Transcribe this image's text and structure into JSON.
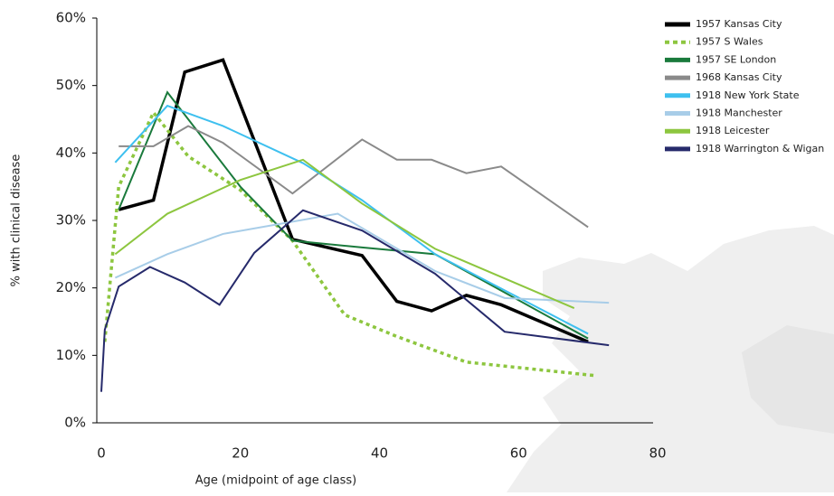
{
  "chart_data": {
    "type": "line",
    "x_label": "Age (midpoint of age class)",
    "y_label": "% with clinical disease",
    "xlim": [
      0,
      80
    ],
    "xticks": [
      0,
      20,
      40,
      60,
      80
    ],
    "ylim": [
      0,
      60
    ],
    "yticks": [
      {
        "value": 0,
        "label": "0%"
      },
      {
        "value": 10,
        "label": "10%"
      },
      {
        "value": 20,
        "label": "20%"
      },
      {
        "value": 30,
        "label": "30%"
      },
      {
        "value": 40,
        "label": "40%"
      },
      {
        "value": 50,
        "label": "50%"
      },
      {
        "value": 60,
        "label": "60%"
      }
    ],
    "grid": false,
    "legend": "top-right",
    "series": [
      {
        "name": "1957 Kansas City",
        "color": "#000000",
        "width": 3.5,
        "dashed": false,
        "x": [
          2.5,
          7.5,
          12,
          17.5,
          27.5,
          37.5,
          42.5,
          47.5,
          52.5,
          57.5,
          70
        ],
        "values": [
          31.6,
          33,
          52,
          53.8,
          27.2,
          24.8,
          18,
          16.6,
          18.9,
          17.5,
          12
        ]
      },
      {
        "name": "1957 S Wales",
        "color": "#8dc63f",
        "width": 3.5,
        "dashed": true,
        "x": [
          0.5,
          2.5,
          7.5,
          12.5,
          20,
          27.5,
          35,
          42.5,
          52.5,
          71
        ],
        "values": [
          12,
          35,
          46,
          39.5,
          34.5,
          27,
          16,
          12.8,
          9,
          7
        ]
      },
      {
        "name": "1957 SE London",
        "color": "#1a7a3c",
        "width": 2,
        "dashed": false,
        "x": [
          2.5,
          9.5,
          20,
          27.5,
          37.5,
          48,
          70
        ],
        "values": [
          31.6,
          49,
          35,
          27,
          26,
          25,
          12.5
        ]
      },
      {
        "name": "1968 Kansas City",
        "color": "#8a8a8a",
        "width": 2,
        "dashed": false,
        "x": [
          2.5,
          7.5,
          12.5,
          17.5,
          27.5,
          37.5,
          42.5,
          47.5,
          52.5,
          57.5,
          70
        ],
        "values": [
          41,
          41,
          44,
          41.5,
          34,
          42,
          39,
          39,
          37,
          38,
          29
        ]
      },
      {
        "name": "1918 New York State",
        "color": "#3ec0ef",
        "width": 2,
        "dashed": false,
        "x": [
          2,
          9.5,
          17.5,
          29,
          37.5,
          48,
          70
        ],
        "values": [
          38.6,
          47,
          44,
          38.5,
          33,
          25,
          13.2
        ]
      },
      {
        "name": "1918 Manchester",
        "color": "#a8cde8",
        "width": 2,
        "dashed": false,
        "x": [
          2,
          9.5,
          17.5,
          34,
          48,
          58,
          73
        ],
        "values": [
          21.5,
          25,
          28,
          31,
          22.5,
          18.5,
          17.8
        ]
      },
      {
        "name": "1918 Leicester",
        "color": "#8dc63f",
        "width": 2,
        "dashed": false,
        "x": [
          2,
          9.5,
          20,
          29,
          37.5,
          48,
          68
        ],
        "values": [
          25,
          31,
          36,
          39,
          32.5,
          25.8,
          17
        ]
      },
      {
        "name": "1918 Warrington & Wigan",
        "color": "#262a6b",
        "width": 2,
        "dashed": false,
        "x": [
          0,
          0.5,
          2.5,
          7,
          12,
          17,
          22,
          29,
          37.5,
          48,
          58,
          73
        ],
        "values": [
          4.6,
          13.8,
          20.2,
          23.1,
          20.8,
          17.5,
          25.2,
          31.5,
          28.5,
          22.1,
          13.5,
          11.5
        ]
      }
    ]
  }
}
